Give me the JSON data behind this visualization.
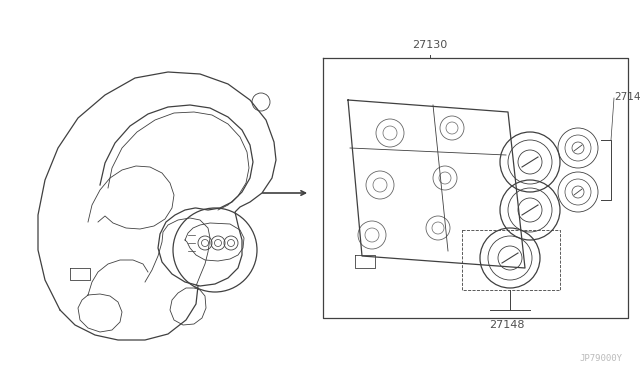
{
  "bg_color": "#ffffff",
  "line_color": "#404040",
  "label_color": "#505050",
  "watermark": "JP79000Y",
  "fig_w": 6.4,
  "fig_h": 3.72,
  "dpi": 100
}
